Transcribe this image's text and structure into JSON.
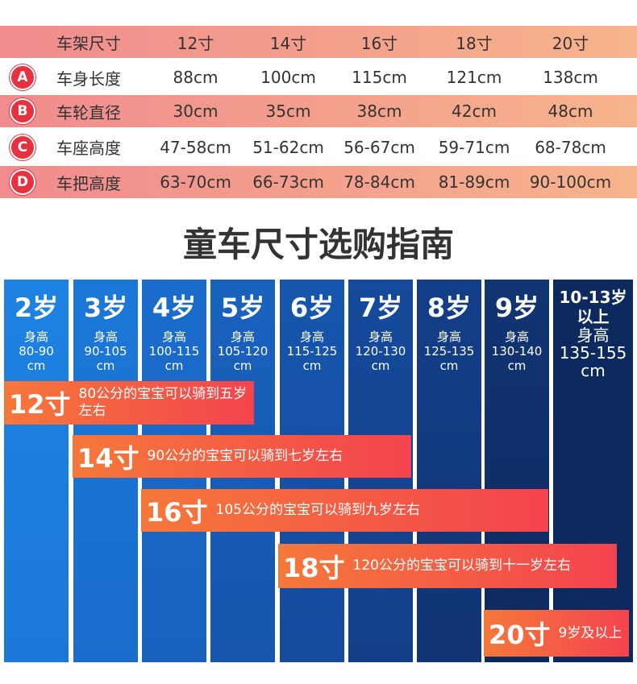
{
  "table": {
    "header": [
      "车架尺寸",
      "12寸",
      "14寸",
      "16寸",
      "18寸",
      "20寸"
    ],
    "rows": [
      {
        "badge": "A",
        "cells": [
          "车身长度",
          "88cm",
          "100cm",
          "115cm",
          "121cm",
          "138cm"
        ]
      },
      {
        "badge": "B",
        "cells": [
          "车轮直径",
          "30cm",
          "35cm",
          "38cm",
          "42cm",
          "48cm"
        ]
      },
      {
        "badge": "C",
        "cells": [
          "车座高度",
          "47-58cm",
          "51-62cm",
          "56-67cm",
          "59-71cm",
          "68-78cm"
        ]
      },
      {
        "badge": "D",
        "cells": [
          "车把高度",
          "63-70cm",
          "66-73cm",
          "78-84cm",
          "81-89cm",
          "90-100cm"
        ]
      }
    ]
  },
  "title": "童车尺寸选购指南",
  "columns": [
    {
      "age": "2岁",
      "label": "身高",
      "height": "80-90",
      "unit": "cm"
    },
    {
      "age": "3岁",
      "label": "身高",
      "height": "90-105",
      "unit": "cm"
    },
    {
      "age": "4岁",
      "label": "身高",
      "height": "100-115",
      "unit": "cm"
    },
    {
      "age": "5岁",
      "label": "身高",
      "height": "105-120",
      "unit": "cm"
    },
    {
      "age": "6岁",
      "label": "身高",
      "height": "115-125",
      "unit": "cm"
    },
    {
      "age": "7岁",
      "label": "身高",
      "height": "120-130",
      "unit": "cm"
    },
    {
      "age": "8岁",
      "label": "身高",
      "height": "125-135",
      "unit": "cm"
    },
    {
      "age": "9岁",
      "label": "身高",
      "height": "130-140",
      "unit": "cm"
    },
    {
      "age": "10-13岁",
      "age_note": "以上",
      "label": "身高",
      "height": "135-155",
      "unit": "cm"
    }
  ],
  "bars": [
    {
      "size": "12寸",
      "text": "80公分的宝宝可以骑到五岁左右"
    },
    {
      "size": "14寸",
      "text": "90公分的宝宝可以骑到七岁左右"
    },
    {
      "size": "16寸",
      "text": "105公分的宝宝可以骑到九岁左右"
    },
    {
      "size": "18寸",
      "text": "120公分的宝宝可以骑到十一岁左右"
    },
    {
      "size": "20寸",
      "text": "9岁及以上"
    }
  ]
}
